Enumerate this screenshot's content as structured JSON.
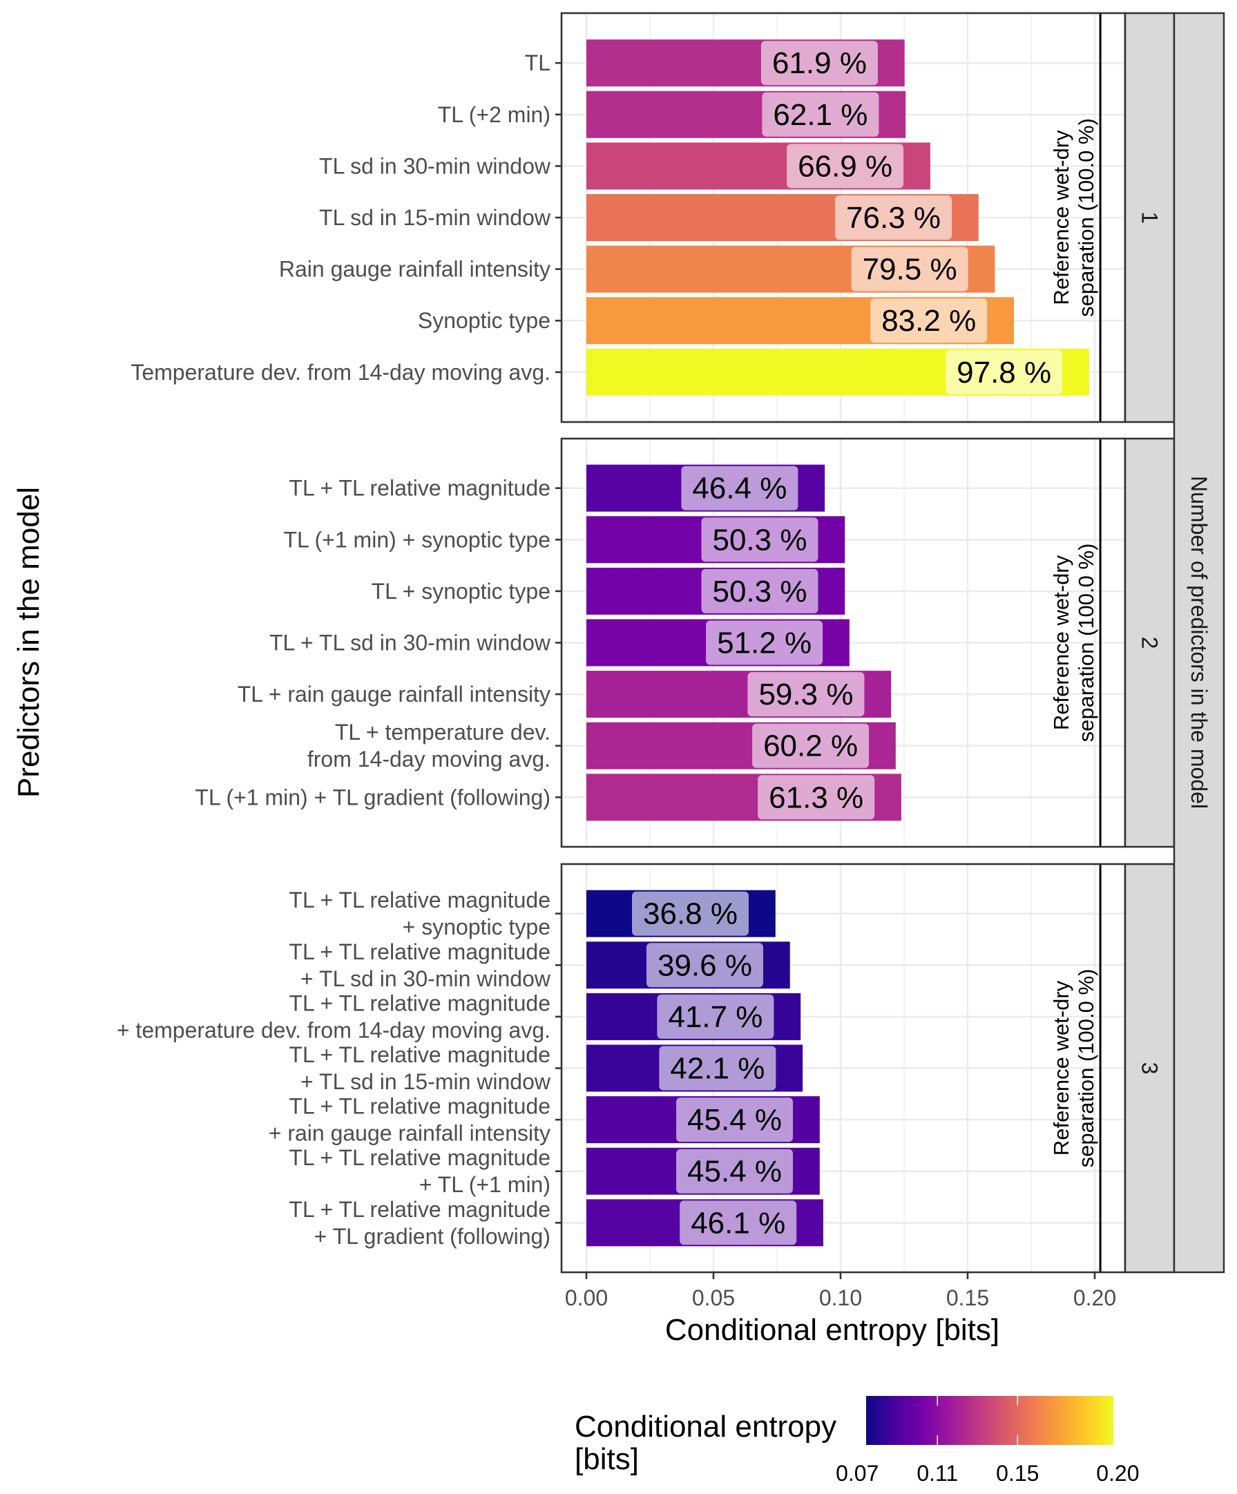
{
  "chart_data": {
    "type": "bar",
    "orientation": "horizontal",
    "xlabel": "Conditional entropy [bits]",
    "ylabel": "Predictors in the model",
    "facet_title": "Number of predictors in the model",
    "xlim": [
      0,
      0.2
    ],
    "x_ticks": [
      0.0,
      0.05,
      0.1,
      0.15,
      0.2
    ],
    "x_tick_labels": [
      "0.00",
      "0.05",
      "0.10",
      "0.15",
      "0.20"
    ],
    "grid": true,
    "reference": {
      "value": 0.2022,
      "label_line1": "Reference wet-dry",
      "label_line2": "separation (100.0 %)"
    },
    "legend": {
      "title_line1": "Conditional entropy",
      "title_line2": "[bits]",
      "position": "bottom",
      "colormap": "plasma",
      "range": [
        0.0744,
        0.1978
      ],
      "ticks": [
        0.07,
        0.11,
        0.15,
        0.2
      ],
      "tick_labels": [
        "0.07",
        "0.11",
        "0.15",
        "0.20"
      ],
      "color_stops": [
        "#0d0887",
        "#47039f",
        "#7301a8",
        "#9c179e",
        "#bd3786",
        "#d8576b",
        "#ed7953",
        "#fa9e3b",
        "#fdc926",
        "#f0f921"
      ]
    },
    "facets": [
      {
        "strip": "1",
        "bars": [
          {
            "label": [
              "TL"
            ],
            "value": 0.1252,
            "percent_label": "61.9 %"
          },
          {
            "label": [
              "TL (+2 min)"
            ],
            "value": 0.1256,
            "percent_label": "62.1 %"
          },
          {
            "label": [
              "TL sd in 30-min window"
            ],
            "value": 0.1353,
            "percent_label": "66.9 %"
          },
          {
            "label": [
              "TL sd in 15-min window"
            ],
            "value": 0.1543,
            "percent_label": "76.3 %"
          },
          {
            "label": [
              "Rain gauge rainfall intensity"
            ],
            "value": 0.1607,
            "percent_label": "79.5 %"
          },
          {
            "label": [
              "Synoptic type"
            ],
            "value": 0.1682,
            "percent_label": "83.2 %"
          },
          {
            "label": [
              "Temperature dev. from 14-day moving avg."
            ],
            "value": 0.1978,
            "percent_label": "97.8 %"
          }
        ]
      },
      {
        "strip": "2",
        "bars": [
          {
            "label": [
              "TL + TL relative magnitude"
            ],
            "value": 0.0938,
            "percent_label": "46.4 %"
          },
          {
            "label": [
              "TL (+1 min) + synoptic type"
            ],
            "value": 0.1017,
            "percent_label": "50.3 %"
          },
          {
            "label": [
              "TL + synoptic type"
            ],
            "value": 0.1017,
            "percent_label": "50.3 %"
          },
          {
            "label": [
              "TL + TL sd in 30-min window"
            ],
            "value": 0.1035,
            "percent_label": "51.2 %"
          },
          {
            "label": [
              "TL + rain gauge rainfall intensity"
            ],
            "value": 0.1199,
            "percent_label": "59.3 %"
          },
          {
            "label": [
              "TL + temperature dev.",
              "from 14-day moving avg."
            ],
            "value": 0.1217,
            "percent_label": "60.2 %"
          },
          {
            "label": [
              "TL (+1 min) + TL gradient (following)"
            ],
            "value": 0.1239,
            "percent_label": "61.3 %"
          }
        ]
      },
      {
        "strip": "3",
        "bars": [
          {
            "label": [
              "TL + TL relative magnitude",
              "+ synoptic type"
            ],
            "value": 0.0744,
            "percent_label": "36.8 %"
          },
          {
            "label": [
              "TL + TL relative magnitude",
              "+ TL sd in 30-min window"
            ],
            "value": 0.0801,
            "percent_label": "39.6 %"
          },
          {
            "label": [
              "TL + TL relative magnitude",
              "+ temperature dev. from 14-day moving avg."
            ],
            "value": 0.0843,
            "percent_label": "41.7 %"
          },
          {
            "label": [
              "TL + TL relative magnitude",
              "+ TL sd in 15-min window"
            ],
            "value": 0.0851,
            "percent_label": "42.1 %"
          },
          {
            "label": [
              "TL + TL relative magnitude",
              "+ rain gauge rainfall intensity"
            ],
            "value": 0.0918,
            "percent_label": "45.4 %"
          },
          {
            "label": [
              "TL + TL relative magnitude",
              "+ TL (+1 min)"
            ],
            "value": 0.0918,
            "percent_label": "45.4 %"
          },
          {
            "label": [
              "TL + TL relative magnitude",
              "+ TL gradient (following)"
            ],
            "value": 0.0932,
            "percent_label": "46.1 %"
          }
        ]
      }
    ]
  }
}
